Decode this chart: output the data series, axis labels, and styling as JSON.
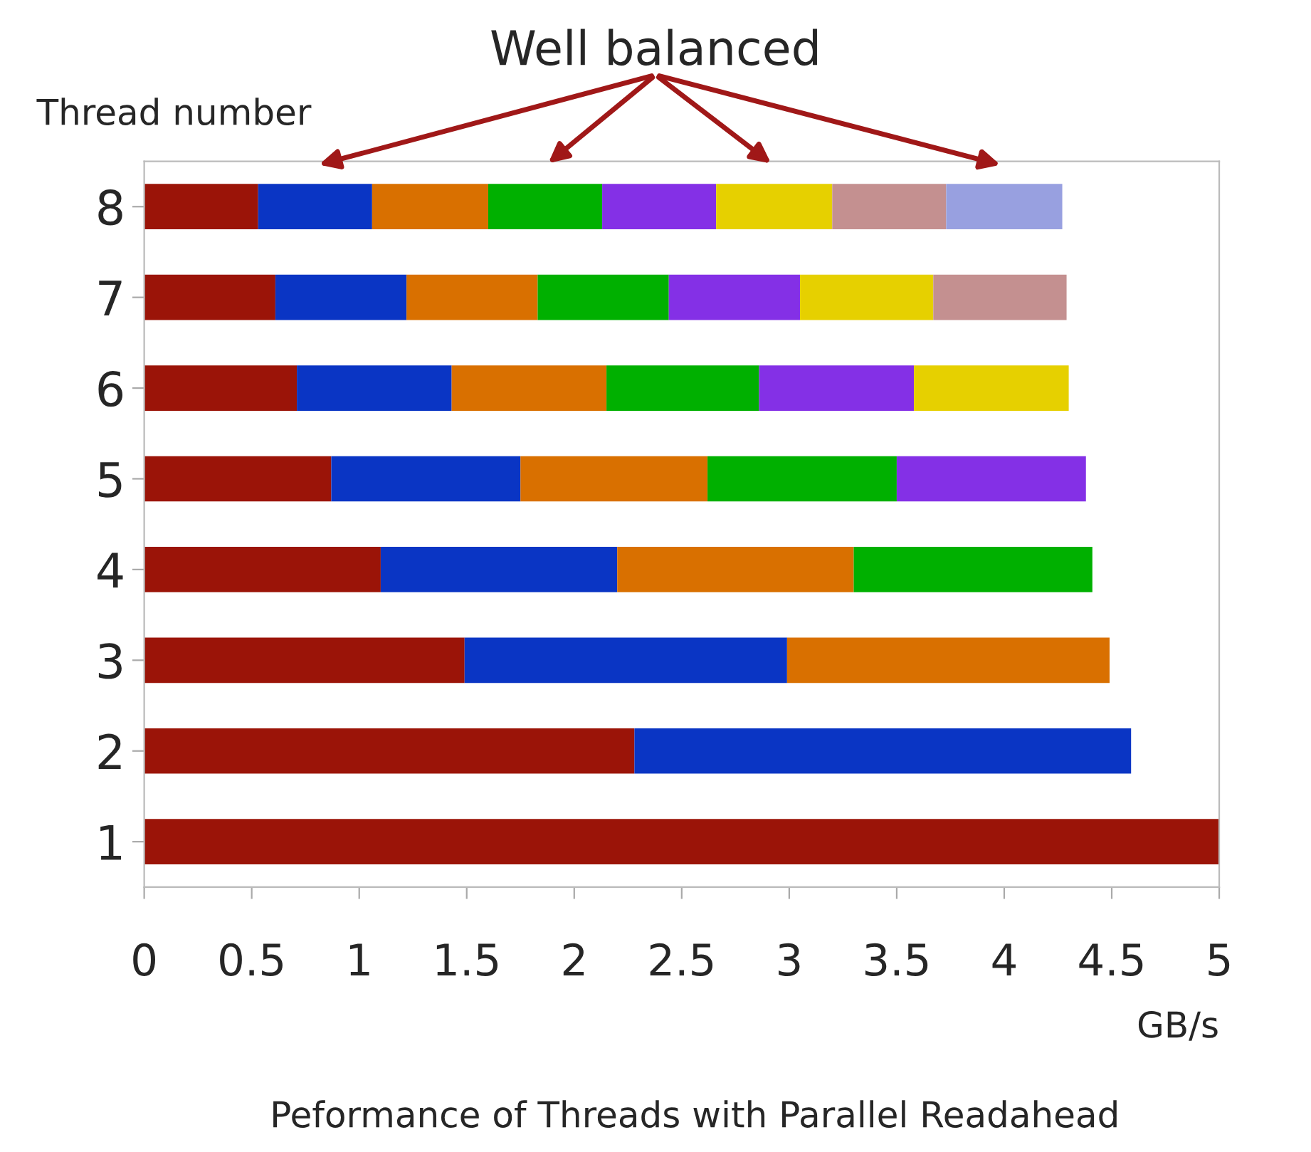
{
  "chart_data": {
    "type": "bar",
    "orientation": "horizontal",
    "stacked": true,
    "ylabel": "Thread number",
    "xlabel": "GB/s",
    "annotations": [
      "Well balanced",
      "Peformance of Threads with Parallel Readahead"
    ],
    "categories": [
      "8",
      "7",
      "6",
      "5",
      "4",
      "3",
      "2",
      "1"
    ],
    "series": [
      {
        "color": "#9b1408",
        "values": [
          0.53,
          0.61,
          0.71,
          0.87,
          1.1,
          1.49,
          2.28,
          5.0
        ]
      },
      {
        "color": "#0a35c4",
        "values": [
          0.53,
          0.61,
          0.72,
          0.88,
          1.1,
          1.5,
          2.31,
          null
        ]
      },
      {
        "color": "#d97000",
        "values": [
          0.54,
          0.61,
          0.72,
          0.87,
          1.1,
          1.5,
          null,
          null
        ]
      },
      {
        "color": "#00b000",
        "values": [
          0.53,
          0.61,
          0.71,
          0.88,
          1.11,
          null,
          null,
          null
        ]
      },
      {
        "color": "#8430e6",
        "values": [
          0.53,
          0.61,
          0.72,
          0.88,
          null,
          null,
          null,
          null
        ]
      },
      {
        "color": "#e6d000",
        "values": [
          0.54,
          0.62,
          0.72,
          null,
          null,
          null,
          null,
          null
        ]
      },
      {
        "color": "#c49090",
        "values": [
          0.53,
          0.62,
          null,
          null,
          null,
          null,
          null,
          null
        ]
      },
      {
        "color": "#98a0e0",
        "values": [
          0.54,
          null,
          null,
          null,
          null,
          null,
          null,
          null
        ]
      }
    ],
    "xlim": [
      0,
      5
    ],
    "xticks": [
      0,
      0.5,
      1,
      1.5,
      2,
      2.5,
      3,
      3.5,
      4,
      4.5,
      5
    ],
    "grid": false,
    "legend": false
  }
}
